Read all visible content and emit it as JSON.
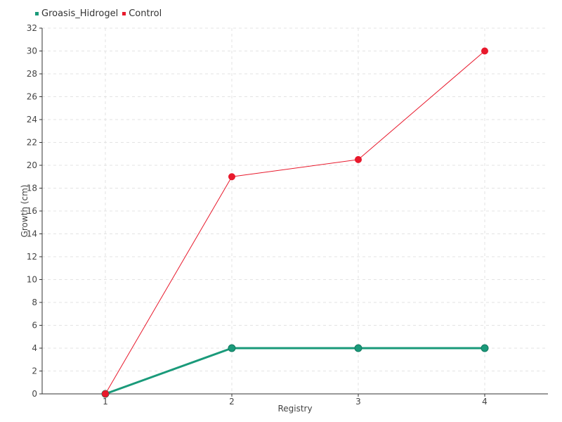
{
  "chart_data": {
    "type": "line",
    "title": "",
    "xlabel": "Registry",
    "ylabel": "Growth (cm)",
    "categories": [
      "1",
      "2",
      "3",
      "4"
    ],
    "ylim": [
      0,
      32
    ],
    "ytick_step": 2,
    "grid": true,
    "legend_position": "top-left",
    "series": [
      {
        "name": "Groasis_Hidrogel",
        "color": "#1a9a7a",
        "values": [
          0,
          4,
          4,
          4
        ]
      },
      {
        "name": "Control",
        "color": "#e8192c",
        "values": [
          0,
          19,
          20.5,
          30
        ]
      }
    ]
  }
}
